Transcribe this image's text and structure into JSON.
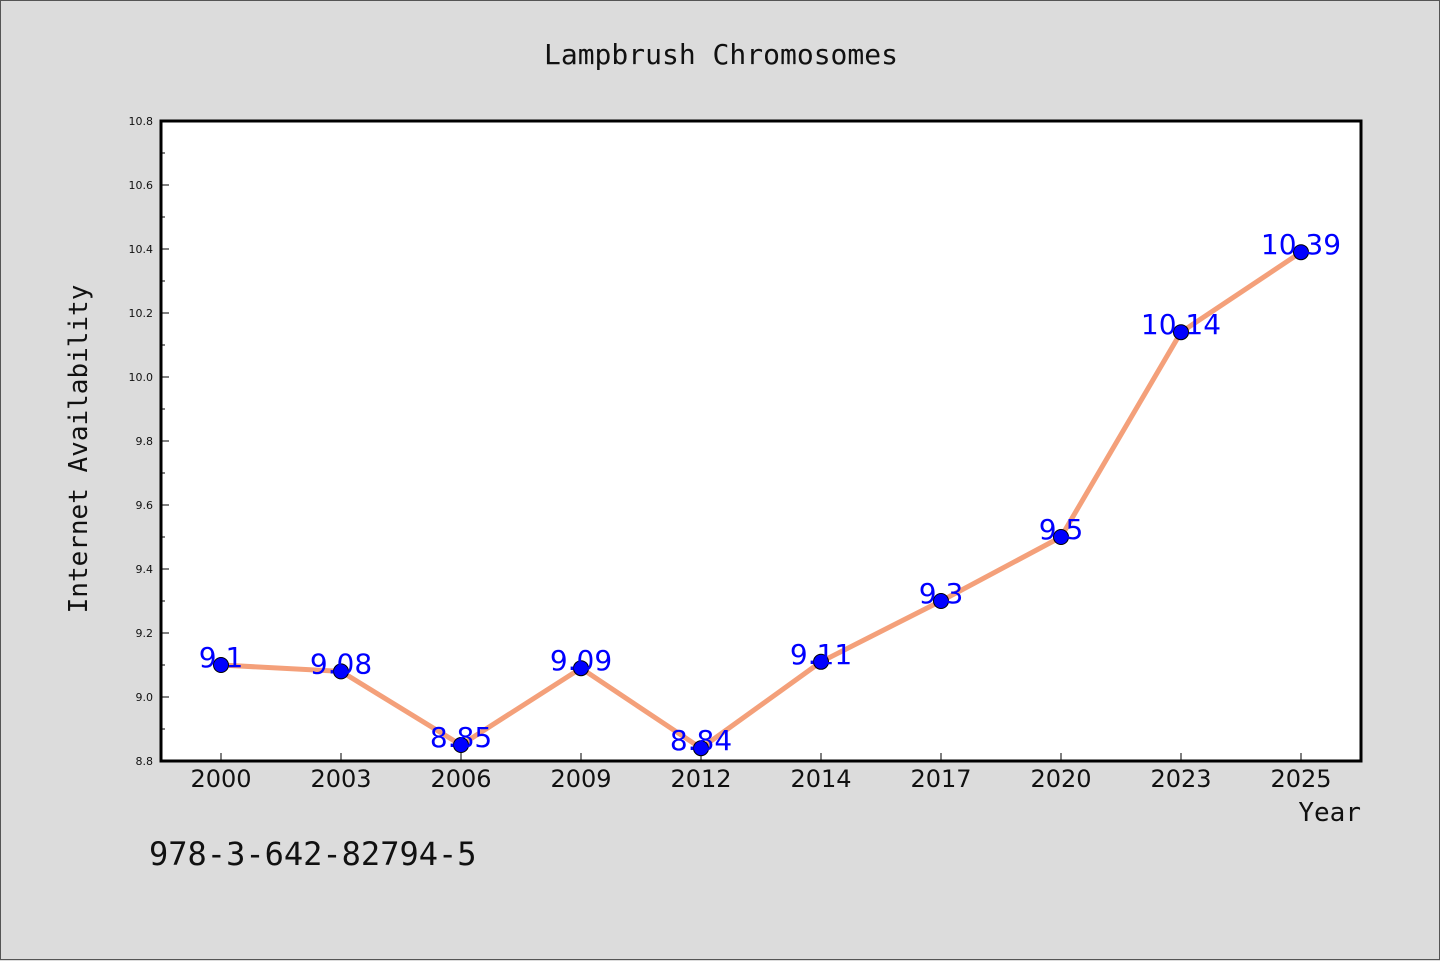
{
  "chart_data": {
    "type": "line",
    "title": "Lampbrush Chromosomes",
    "xlabel": "Year",
    "ylabel": "Internet Availability",
    "categories": [
      "2000",
      "2003",
      "2006",
      "2009",
      "2012",
      "2014",
      "2017",
      "2020",
      "2023",
      "2025"
    ],
    "series": [
      {
        "values": [
          9.1,
          9.08,
          8.85,
          9.09,
          8.84,
          9.11,
          9.3,
          9.5,
          10.14,
          10.39
        ],
        "data_labels": [
          "9.1",
          "9.08",
          "8.85",
          "9.09",
          "8.84",
          "9.11",
          "9.3",
          "9.5",
          "10.14",
          "10.39"
        ],
        "line_color": "#f4a07a",
        "marker_color": "#0000ff"
      }
    ],
    "ylim": [
      8.8,
      10.8
    ],
    "yticks": [
      "8.8",
      "9.0",
      "9.2",
      "9.4",
      "9.6",
      "9.8",
      "10.0",
      "10.2",
      "10.4",
      "10.6",
      "10.8"
    ],
    "grid": false,
    "legend": "none"
  },
  "footer": {
    "isbn": "978-3-642-82794-5"
  },
  "colors": {
    "background": "#dcdcdc",
    "plot_background": "#ffffff",
    "line": "#f4a07a",
    "marker": "#0000ff",
    "data_label": "#0000ff"
  }
}
